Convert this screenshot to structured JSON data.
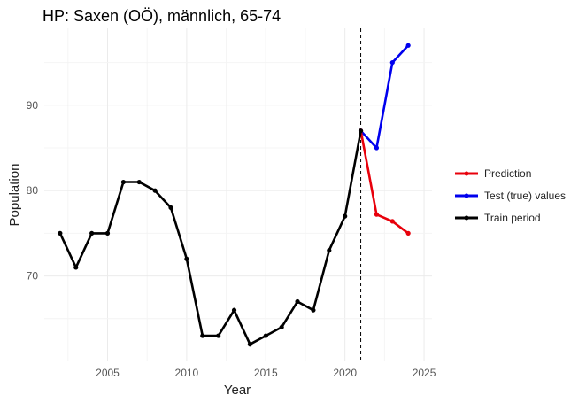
{
  "chart_data": {
    "type": "line",
    "title": "HP: Saxen (OÖ), männlich, 65-74",
    "xlabel": "Year",
    "ylabel": "Population",
    "xlim": [
      2001,
      2025.5
    ],
    "ylim": [
      60,
      99
    ],
    "x_ticks": [
      2005,
      2010,
      2015,
      2020,
      2025
    ],
    "y_ticks": [
      70,
      80,
      90
    ],
    "grid": true,
    "legend_position": "right",
    "vline": {
      "x": 2021,
      "style": "dashed",
      "color": "#000000"
    },
    "series": [
      {
        "name": "Train period",
        "color": "#000000",
        "x": [
          2002,
          2003,
          2004,
          2005,
          2006,
          2007,
          2008,
          2009,
          2010,
          2011,
          2012,
          2013,
          2014,
          2015,
          2016,
          2017,
          2018,
          2019,
          2020,
          2021
        ],
        "y": [
          75,
          71,
          75,
          75,
          81,
          81,
          80,
          78,
          72,
          63,
          63,
          66,
          62,
          63,
          64,
          67,
          66,
          73,
          77,
          87
        ]
      },
      {
        "name": "Prediction",
        "color": "#e8000b",
        "x": [
          2021,
          2022,
          2023,
          2024
        ],
        "y": [
          87,
          77.2,
          76.4,
          75
        ]
      },
      {
        "name": "Test (true) values",
        "color": "#0000ee",
        "x": [
          2021,
          2022,
          2023,
          2024
        ],
        "y": [
          87,
          85,
          95,
          97
        ]
      }
    ],
    "legend": [
      "Prediction",
      "Test (true) values",
      "Train period"
    ]
  }
}
